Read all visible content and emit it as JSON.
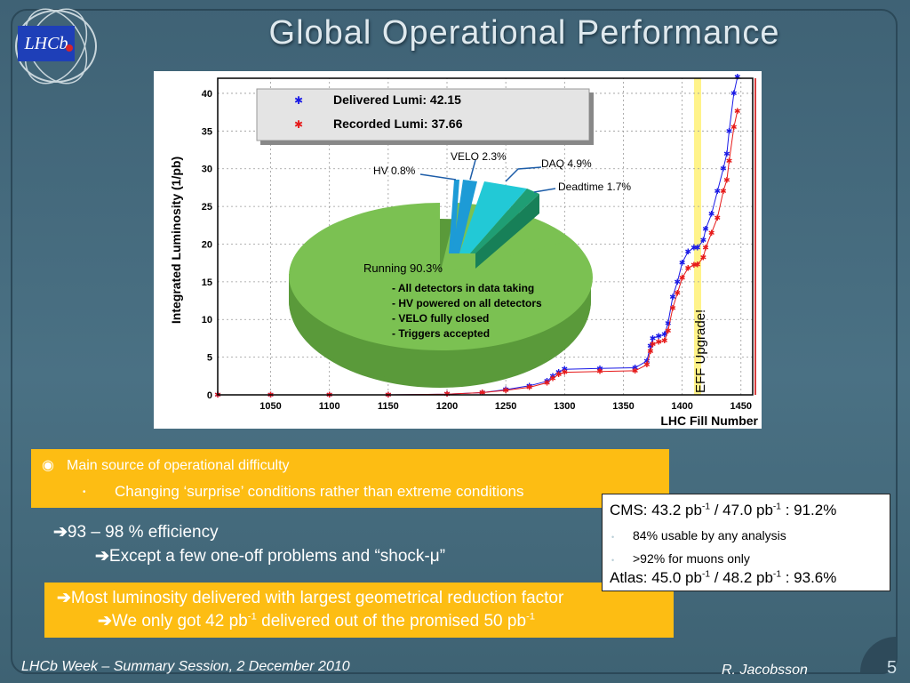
{
  "slide": {
    "title": "Global Operational Performance",
    "logo_text": "LHCb"
  },
  "chart": {
    "ylabel": "Integrated Luminosity (1/pb)",
    "xlabel": "LHC Fill Number",
    "legend": {
      "delivered": "Delivered Lumi: 42.15",
      "recorded": "Recorded Lumi: 37.66"
    },
    "pie_labels": {
      "velo": "VELO 2.3%",
      "hv": "HV 0.8%",
      "daq": "DAQ 4.9%",
      "deadtime": "Deadtime 1.7%",
      "running": "Running 90.3%",
      "notes": [
        "- All detectors in data taking",
        "- HV powered on all detectors",
        "- VELO fully closed",
        "- Triggers accepted"
      ]
    },
    "eff_label": "EFF Upgrade!",
    "colors": {
      "delivered": "#1a1ae6",
      "recorded": "#e61a1a",
      "pie_running": "#7bc152",
      "pie_velo": "#1d9bd6",
      "pie_daq": "#22c9d6",
      "pie_deadtime": "#1f9e74",
      "eff_band": "#fff38a"
    }
  },
  "chart_data": {
    "type": "line",
    "xlabel": "LHC Fill Number",
    "ylabel": "Integrated Luminosity (1/pb)",
    "xlim": [
      1005,
      1460
    ],
    "ylim": [
      0,
      42
    ],
    "xticks": [
      1050,
      1100,
      1150,
      1200,
      1250,
      1300,
      1350,
      1400,
      1450
    ],
    "yticks": [
      0,
      5,
      10,
      15,
      20,
      25,
      30,
      35,
      40
    ],
    "grid": true,
    "legend_position": "top-left",
    "series": [
      {
        "name": "Delivered Lumi: 42.15",
        "x": [
          1005,
          1050,
          1100,
          1150,
          1200,
          1230,
          1250,
          1270,
          1285,
          1290,
          1295,
          1300,
          1330,
          1360,
          1370,
          1373,
          1375,
          1380,
          1385,
          1388,
          1392,
          1396,
          1400,
          1405,
          1410,
          1413,
          1418,
          1420,
          1425,
          1430,
          1435,
          1438,
          1440,
          1444,
          1447
        ],
        "y": [
          0,
          0,
          0,
          0,
          0.1,
          0.3,
          0.7,
          1.2,
          1.8,
          2.5,
          3.0,
          3.4,
          3.5,
          3.6,
          4.5,
          6.5,
          7.5,
          7.8,
          8.0,
          9.5,
          13,
          15,
          17.5,
          19.0,
          19.5,
          19.5,
          20.5,
          22,
          24,
          27,
          30,
          32,
          35,
          40,
          42.15
        ]
      },
      {
        "name": "Recorded Lumi: 37.66",
        "x": [
          1005,
          1050,
          1100,
          1150,
          1200,
          1230,
          1250,
          1270,
          1285,
          1290,
          1295,
          1300,
          1330,
          1360,
          1370,
          1373,
          1375,
          1380,
          1385,
          1388,
          1392,
          1396,
          1400,
          1405,
          1410,
          1413,
          1418,
          1420,
          1425,
          1430,
          1435,
          1438,
          1440,
          1444,
          1447
        ],
        "y": [
          0,
          0,
          0,
          0,
          0.1,
          0.3,
          0.6,
          1.0,
          1.6,
          2.2,
          2.7,
          3.0,
          3.1,
          3.2,
          4.0,
          5.8,
          6.7,
          7.0,
          7.2,
          8.5,
          11.5,
          13.5,
          15.5,
          16.8,
          17.2,
          17.3,
          18.2,
          19.5,
          21.5,
          23.5,
          27,
          28.5,
          31,
          35.5,
          37.66
        ]
      }
    ],
    "pie": {
      "slices": [
        {
          "name": "Running 90.3%",
          "value": 90.3
        },
        {
          "name": "HV 0.8%",
          "value": 0.8
        },
        {
          "name": "VELO 2.3%",
          "value": 2.3
        },
        {
          "name": "DAQ 4.9%",
          "value": 4.9
        },
        {
          "name": "Deadtime 1.7%",
          "value": 1.7
        }
      ]
    },
    "annotations": [
      "EFF Upgrade!"
    ]
  },
  "content": {
    "bullet1": "Main source of operational difficulty",
    "bullet2": "Changing ‘surprise’ conditions rather than extreme conditions",
    "efficiency": "93 – 98 % efficiency",
    "except": "Except a few one-off problems and “shock-μ”",
    "most_lumi": "Most luminosity delivered with largest geometrical reduction factor",
    "we_got_pre": "We only got 42 pb",
    "we_got_mid": " delivered out of the promised 50 pb",
    "sup_minus1": "-1"
  },
  "cms_box": {
    "cms_pre": "CMS: 43.2 pb",
    "cms_mid": " / 47.0 pb",
    "cms_post": " : 91.2%",
    "usable": "84% usable by any analysis",
    "muons": ">92% for muons only",
    "atlas_pre": "Atlas: 45.0 pb",
    "atlas_mid": "  / 48.2 pb",
    "atlas_post": " : 93.6%"
  },
  "footer": {
    "left": "LHCb Week – Summary Session, 2 December 2010",
    "author": "R. Jacobsson",
    "page": "5"
  }
}
